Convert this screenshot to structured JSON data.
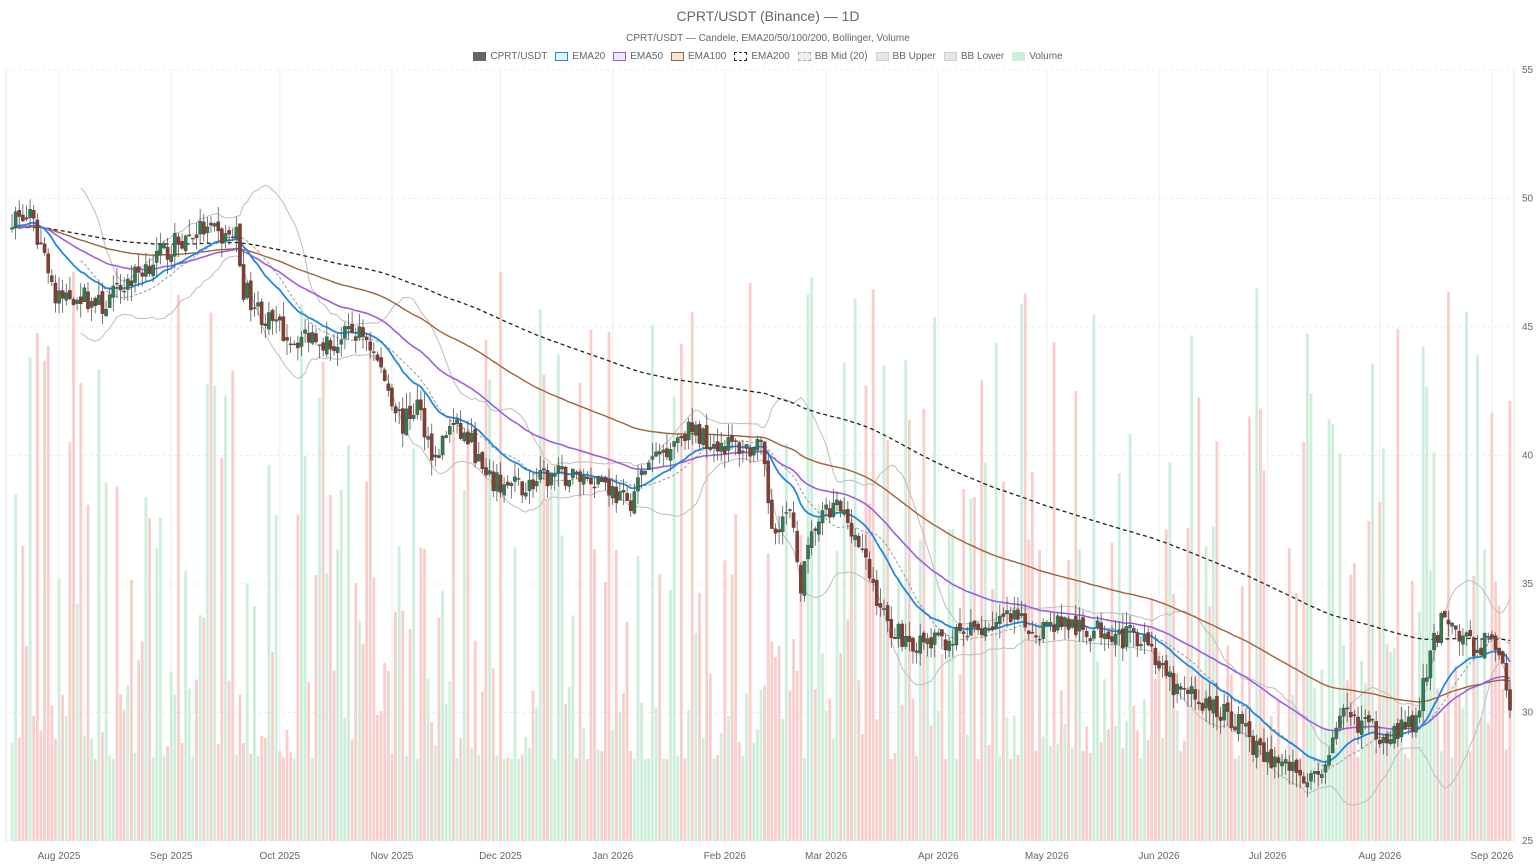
{
  "title": "CPRT/USDT (Binance) — 1D",
  "subtitle": "CPRT/USDT — Candele, EMA20/50/100/200, Bollinger, Volume",
  "legend": [
    {
      "label": "CPRT/USDT",
      "kind": "solid",
      "fill": "#666666",
      "stroke": "#666666"
    },
    {
      "label": "EMA20",
      "kind": "box",
      "fill": "#e3f2fd",
      "stroke": "#1e88e5"
    },
    {
      "label": "EMA50",
      "kind": "box",
      "fill": "#f3e8ff",
      "stroke": "#9b5de5"
    },
    {
      "label": "EMA100",
      "kind": "box",
      "fill": "#f2e6dc",
      "stroke": "#a0623c"
    },
    {
      "label": "EMA200",
      "kind": "dashed",
      "fill": "#ffffff",
      "stroke": "#222222"
    },
    {
      "label": "BB Mid (20)",
      "kind": "dashed",
      "fill": "#eeeeee",
      "stroke": "#aaaaaa"
    },
    {
      "label": "BB Upper",
      "kind": "box",
      "fill": "#e6e6e6",
      "stroke": "#d0d0d0"
    },
    {
      "label": "BB Lower",
      "kind": "box",
      "fill": "#e6e6e6",
      "stroke": "#d0d0d0"
    },
    {
      "label": "Volume",
      "kind": "box",
      "fill": "#cdeedd",
      "stroke": "#cdeedd"
    }
  ],
  "chart_data": {
    "type": "candlestick",
    "y_ticks": [
      25,
      30,
      35,
      40,
      45,
      50,
      55
    ],
    "ylim": [
      25,
      55
    ],
    "x_ticks": [
      "Aug 2025",
      "Sep 2025",
      "Oct 2025",
      "Nov 2025",
      "Dec 2025",
      "Jan 2026",
      "Feb 2026",
      "Mar 2026",
      "Apr 2026",
      "May 2026",
      "Jun 2026",
      "Jul 2026",
      "Aug 2026",
      "Sep 2026"
    ],
    "x_tick_days": [
      13,
      44,
      74,
      105,
      135,
      166,
      197,
      225,
      256,
      286,
      317,
      347,
      378,
      409
    ],
    "x_range_days": [
      0,
      414
    ],
    "first_date": "2025-07-19",
    "grid": true,
    "legend_position": "top",
    "colors": {
      "up": "#2e7d4f",
      "down": "#8b3a2e",
      "ema20": "#1e88e5",
      "ema50": "#9b5de5",
      "ema100": "#a0623c",
      "ema200": "#222222",
      "bb": "#bdbdbd",
      "vol_up": "#c8ecd6",
      "vol_down": "#f7c9c4"
    },
    "close_anchors": [
      [
        0,
        49.3
      ],
      [
        5,
        49.2
      ],
      [
        10,
        47.5
      ],
      [
        12,
        46.0
      ],
      [
        18,
        46.3
      ],
      [
        25,
        45.8
      ],
      [
        30,
        46.5
      ],
      [
        38,
        47.5
      ],
      [
        45,
        48.2
      ],
      [
        52,
        48.8
      ],
      [
        58,
        48.5
      ],
      [
        62,
        48.6
      ],
      [
        64,
        46.5
      ],
      [
        70,
        45.3
      ],
      [
        78,
        44.5
      ],
      [
        84,
        44.8
      ],
      [
        88,
        44.2
      ],
      [
        94,
        44.8
      ],
      [
        98,
        44.6
      ],
      [
        103,
        43.0
      ],
      [
        108,
        41.2
      ],
      [
        112,
        42.0
      ],
      [
        117,
        39.8
      ],
      [
        121,
        41.2
      ],
      [
        127,
        40.5
      ],
      [
        131,
        39.0
      ],
      [
        137,
        38.8
      ],
      [
        142,
        38.8
      ],
      [
        150,
        39.2
      ],
      [
        156,
        39.2
      ],
      [
        163,
        39.1
      ],
      [
        170,
        38.0
      ],
      [
        175,
        39.5
      ],
      [
        182,
        40.5
      ],
      [
        186,
        41.0
      ],
      [
        190,
        40.8
      ],
      [
        195,
        40.5
      ],
      [
        202,
        40.3
      ],
      [
        207,
        40.2
      ],
      [
        210,
        37.3
      ],
      [
        215,
        37.7
      ],
      [
        218,
        35.0
      ],
      [
        222,
        37.3
      ],
      [
        228,
        38.0
      ],
      [
        232,
        37.3
      ],
      [
        237,
        35.3
      ],
      [
        242,
        33.4
      ],
      [
        250,
        32.6
      ],
      [
        257,
        32.8
      ],
      [
        263,
        33.0
      ],
      [
        270,
        33.4
      ],
      [
        276,
        33.6
      ],
      [
        283,
        33.2
      ],
      [
        290,
        33.6
      ],
      [
        296,
        33.1
      ],
      [
        303,
        33.3
      ],
      [
        307,
        32.9
      ],
      [
        313,
        33.1
      ],
      [
        318,
        31.5
      ],
      [
        322,
        30.8
      ],
      [
        327,
        30.6
      ],
      [
        331,
        30.2
      ],
      [
        336,
        29.9
      ],
      [
        340,
        29.5
      ],
      [
        345,
        28.3
      ],
      [
        350,
        28.1
      ],
      [
        356,
        27.7
      ],
      [
        360,
        27.3
      ],
      [
        364,
        28.5
      ],
      [
        368,
        29.8
      ],
      [
        373,
        29.6
      ],
      [
        378,
        29.2
      ],
      [
        383,
        29.3
      ],
      [
        388,
        29.6
      ],
      [
        392,
        32.2
      ],
      [
        396,
        34.0
      ],
      [
        400,
        33.0
      ],
      [
        405,
        32.4
      ],
      [
        408,
        33.0
      ],
      [
        411,
        32.5
      ],
      [
        414,
        29.8
      ]
    ],
    "volume_ylim": [
      0,
      200
    ]
  }
}
